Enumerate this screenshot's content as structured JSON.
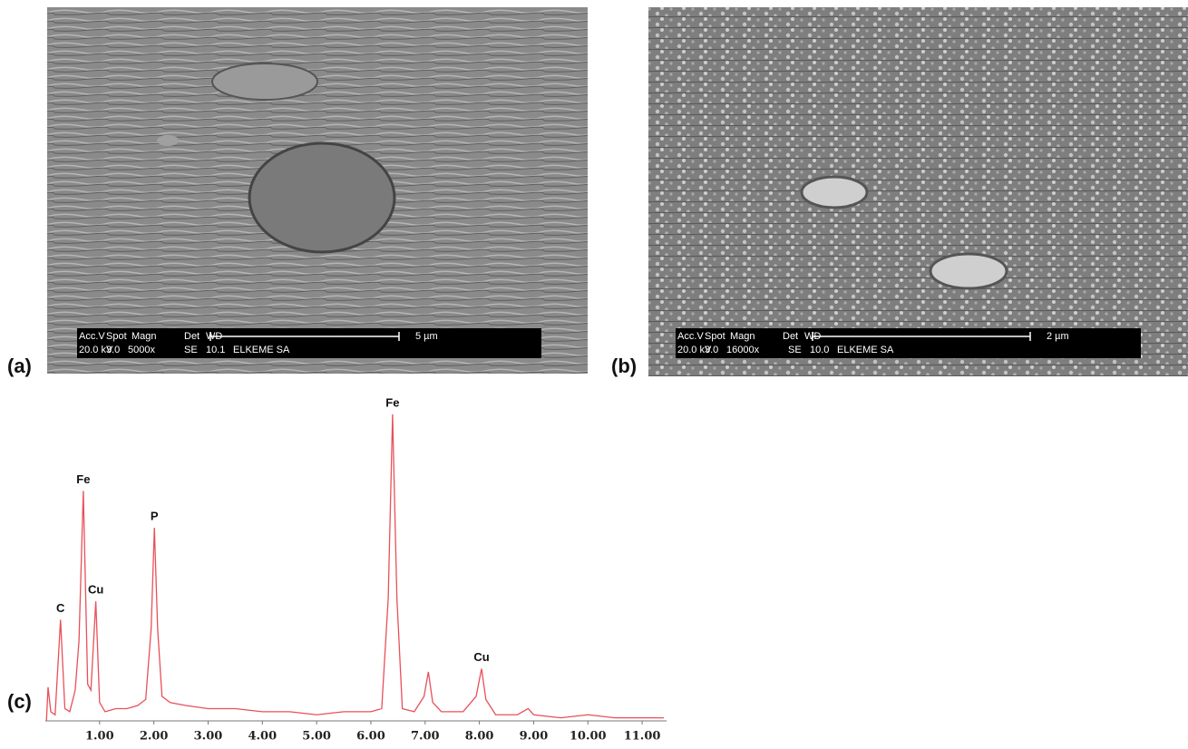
{
  "panels": [
    {
      "label": "(a)",
      "header": [
        "Acc.V",
        "Spot",
        "Magn",
        "Det",
        "WD"
      ],
      "values": [
        "20.0 kV",
        "3.0",
        "5000x",
        "SE",
        "10.1",
        "ELKEME SA"
      ],
      "scale": "5 µm"
    },
    {
      "label": "(b)",
      "header": [
        "Acc.V",
        "Spot",
        "Magn",
        "Det",
        "WD"
      ],
      "values": [
        "20.0 kV",
        "3.0",
        "16000x",
        "SE",
        "10.0",
        "ELKEME SA"
      ],
      "scale": "2 µm"
    }
  ],
  "chart_data": {
    "type": "line",
    "label": "(c)",
    "x": [
      0.02,
      0.05,
      0.1,
      0.18,
      0.28,
      0.36,
      0.45,
      0.55,
      0.62,
      0.7,
      0.78,
      0.84,
      0.93,
      1.0,
      1.1,
      1.3,
      1.5,
      1.7,
      1.85,
      1.95,
      2.01,
      2.07,
      2.15,
      2.3,
      2.6,
      3.0,
      3.5,
      4.0,
      4.5,
      5.0,
      5.5,
      6.0,
      6.2,
      6.32,
      6.4,
      6.48,
      6.58,
      6.8,
      6.98,
      7.06,
      7.14,
      7.3,
      7.7,
      7.94,
      8.04,
      8.12,
      8.3,
      8.7,
      8.9,
      9.0,
      9.5,
      10.0,
      10.5,
      11.0,
      11.4
    ],
    "values": [
      0,
      11,
      3,
      2,
      33,
      4,
      3,
      10,
      26,
      75,
      12,
      10,
      39,
      6,
      3,
      4,
      4,
      5,
      7,
      30,
      63,
      30,
      8,
      6,
      5,
      4,
      4,
      3,
      3,
      2,
      3,
      3,
      4,
      40,
      100,
      40,
      4,
      3,
      8,
      16,
      6,
      3,
      3,
      8,
      17,
      7,
      2,
      2,
      4,
      2,
      1,
      2,
      1,
      1,
      1
    ],
    "color": "#e8505a",
    "xlim": [
      0,
      11.45
    ],
    "ylim": [
      0,
      105
    ],
    "xticks": [
      {
        "value": 1,
        "label": "1.00"
      },
      {
        "value": 2,
        "label": "2.00"
      },
      {
        "value": 3,
        "label": "3.00"
      },
      {
        "value": 4,
        "label": "4.00"
      },
      {
        "value": 5,
        "label": "5.00"
      },
      {
        "value": 6,
        "label": "6.00"
      },
      {
        "value": 7,
        "label": "7.00"
      },
      {
        "value": 8,
        "label": "8.00"
      },
      {
        "value": 9,
        "label": "9.00"
      },
      {
        "value": 10,
        "label": "10.00"
      },
      {
        "value": 11,
        "label": "11.00"
      }
    ],
    "annotations": [
      {
        "text": "C",
        "x": 0.28,
        "y": 33
      },
      {
        "text": "Fe",
        "x": 0.7,
        "y": 75
      },
      {
        "text": "Cu",
        "x": 0.93,
        "y": 39
      },
      {
        "text": "P",
        "x": 2.01,
        "y": 63
      },
      {
        "text": "Fe",
        "x": 6.4,
        "y": 100
      },
      {
        "text": "Cu",
        "x": 8.04,
        "y": 17
      }
    ]
  }
}
